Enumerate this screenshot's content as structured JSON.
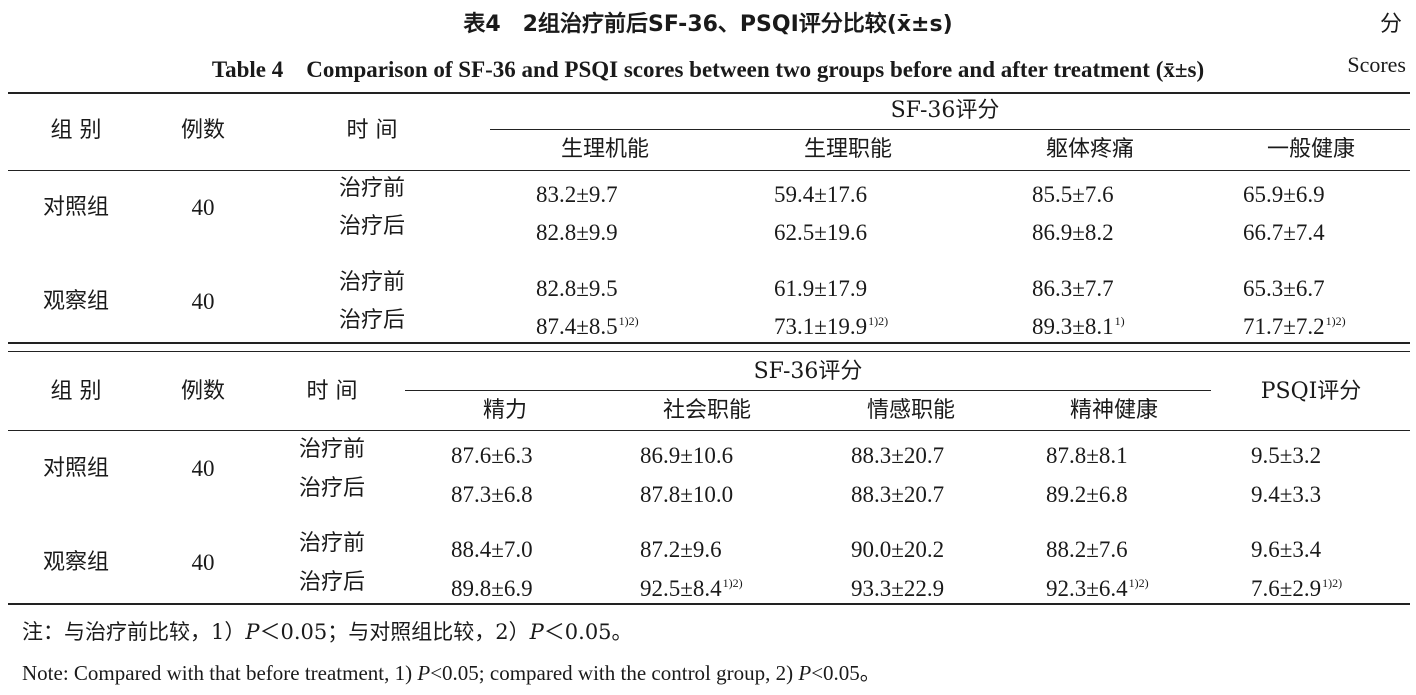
{
  "caption": {
    "cn": "表4　2组治疗前后SF-36、PSQI评分比较(x̄±s)",
    "cn_unit": "分",
    "en": "Table 4　Comparison of SF-36 and PSQI scores between two groups before and after treatment (x̄±s)",
    "en_unit": "Scores"
  },
  "table1": {
    "headers": {
      "group": "组 别",
      "n": "例数",
      "time": "时 间",
      "span": "SF-36评分",
      "cols": [
        "生理机能",
        "生理职能",
        "躯体疼痛",
        "一般健康"
      ]
    },
    "groups": [
      {
        "name": "对照组",
        "n": "40",
        "rows": [
          {
            "time": "治疗前",
            "vals": [
              "83.2±9.7",
              "59.4±17.6",
              "85.5±7.6",
              "65.9±6.9"
            ],
            "sups": [
              "",
              "",
              "",
              ""
            ]
          },
          {
            "time": "治疗后",
            "vals": [
              "82.8±9.9",
              "62.5±19.6",
              "86.9±8.2",
              "66.7±7.4"
            ],
            "sups": [
              "",
              "",
              "",
              ""
            ]
          }
        ]
      },
      {
        "name": "观察组",
        "n": "40",
        "rows": [
          {
            "time": "治疗前",
            "vals": [
              "82.8±9.5",
              "61.9±17.9",
              "86.3±7.7",
              "65.3±6.7"
            ],
            "sups": [
              "",
              "",
              "",
              ""
            ]
          },
          {
            "time": "治疗后",
            "vals": [
              "87.4±8.5",
              "73.1±19.9",
              "89.3±8.1",
              "71.7±7.2"
            ],
            "sups": [
              "1)2)",
              "1)2)",
              "1)",
              "1)2)"
            ]
          }
        ]
      }
    ]
  },
  "table2": {
    "headers": {
      "group": "组 别",
      "n": "例数",
      "time": "时 间",
      "span": "SF-36评分",
      "cols": [
        "精力",
        "社会职能",
        "情感职能",
        "精神健康"
      ],
      "psqi": "PSQI评分"
    },
    "groups": [
      {
        "name": "对照组",
        "n": "40",
        "rows": [
          {
            "time": "治疗前",
            "vals": [
              "87.6±6.3",
              "86.9±10.6",
              "88.3±20.7",
              "87.8±8.1",
              "9.5±3.2"
            ],
            "sups": [
              "",
              "",
              "",
              "",
              ""
            ]
          },
          {
            "time": "治疗后",
            "vals": [
              "87.3±6.8",
              "87.8±10.0",
              "88.3±20.7",
              "89.2±6.8",
              "9.4±3.3"
            ],
            "sups": [
              "",
              "",
              "",
              "",
              ""
            ]
          }
        ]
      },
      {
        "name": "观察组",
        "n": "40",
        "rows": [
          {
            "time": "治疗前",
            "vals": [
              "88.4±7.0",
              "87.2±9.6",
              "90.0±20.2",
              "88.2±7.6",
              "9.6±3.4"
            ],
            "sups": [
              "",
              "",
              "",
              "",
              ""
            ]
          },
          {
            "time": "治疗后",
            "vals": [
              "89.8±6.9",
              "92.5±8.4",
              "93.3±22.9",
              "92.3±6.4",
              "7.6±2.9"
            ],
            "sups": [
              "",
              "1)2)",
              "",
              "1)2)",
              "1)2)"
            ]
          }
        ]
      }
    ]
  },
  "notes": {
    "cn_a": "注：与治疗前比较，1）",
    "cn_p": "P",
    "cn_b": "＜0.05；与对照组比较，2）",
    "cn_c": "＜0.05。",
    "en_a": "Note: Compared with that before treatment, 1) ",
    "en_p": "P",
    "en_b": "<0.05; compared with the control group, 2) ",
    "en_c": "<0.05。"
  }
}
